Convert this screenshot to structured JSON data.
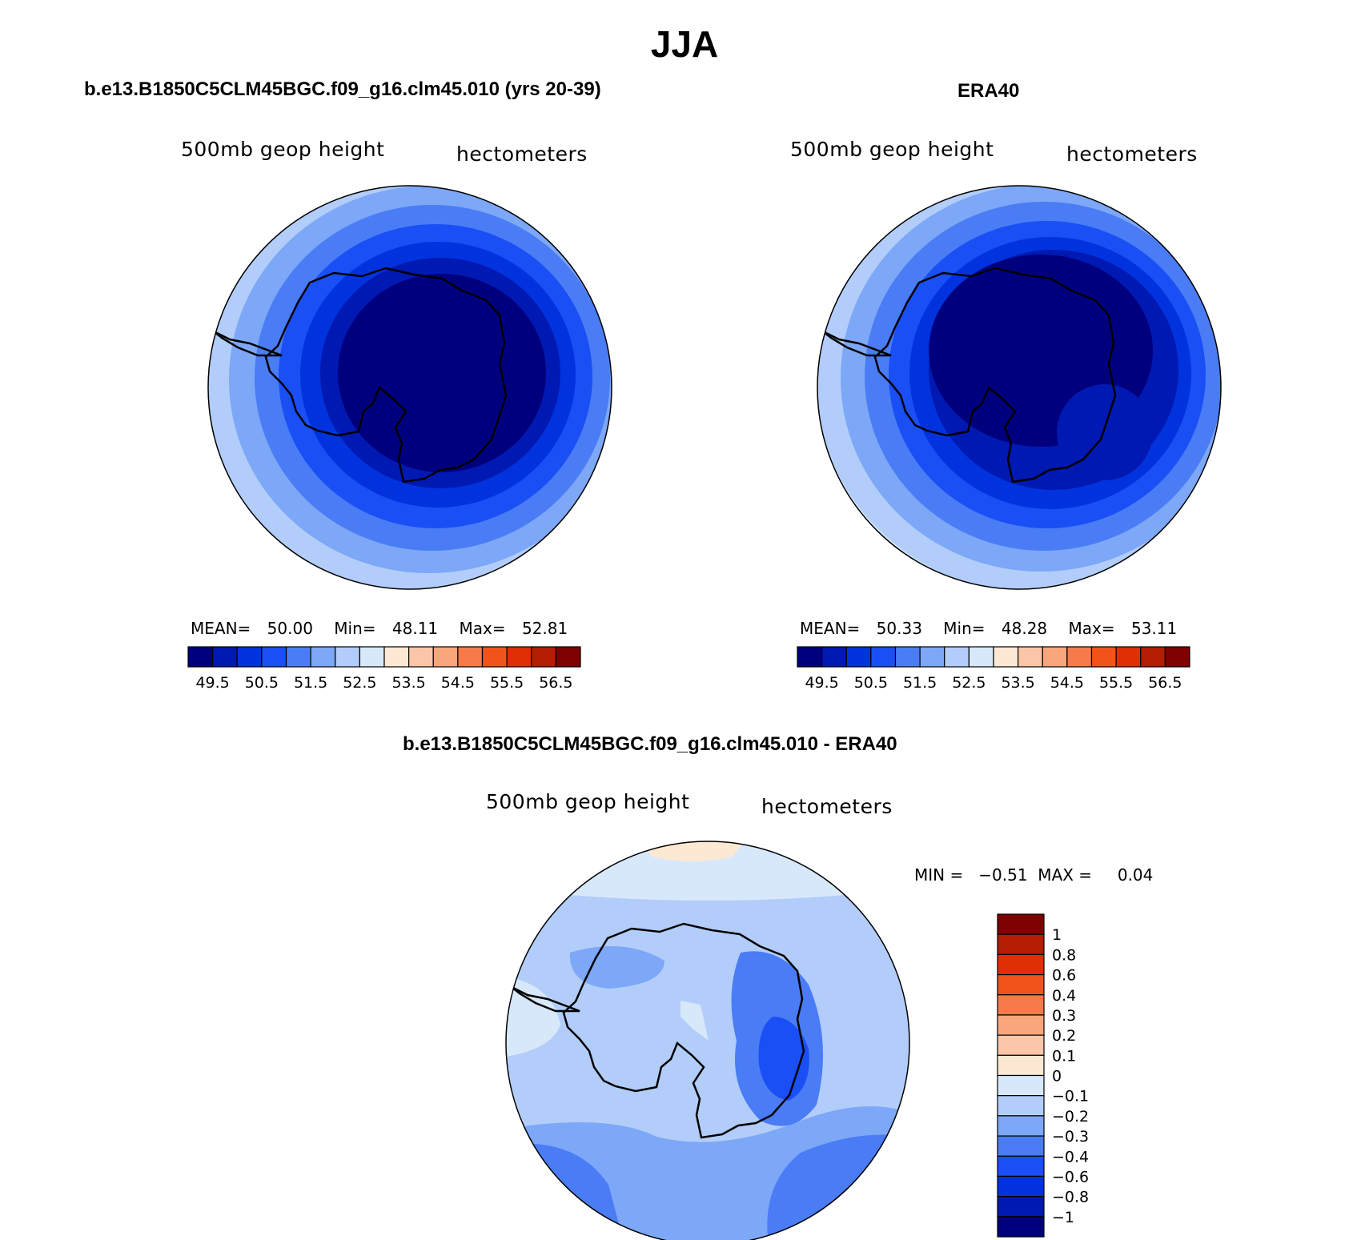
{
  "title": "JJA",
  "panels": [
    {
      "id": "model",
      "title": "b.e13.B1850C5CLM45BGC.f09_g16.clm45.010 (yrs 20-39)",
      "left_label": "500mb  geop  height",
      "right_label": "hectometers",
      "stats": {
        "mean_label": "MEAN=",
        "mean": "50.00",
        "min_label": "Min=",
        "min": "48.11",
        "max_label": "Max=",
        "max": "52.81"
      }
    },
    {
      "id": "obs",
      "title": "ERA40",
      "left_label": "500mb  geop  height",
      "right_label": "hectometers",
      "stats": {
        "mean_label": "MEAN=",
        "mean": "50.33",
        "min_label": "Min=",
        "min": "48.28",
        "max_label": "Max=",
        "max": "53.11"
      }
    },
    {
      "id": "diff",
      "title": "b.e13.B1850C5CLM45BGC.f09_g16.clm45.010 - ERA40",
      "left_label": "500mb  geop  height",
      "right_label": "hectometers",
      "stats": {
        "text": "MIN =   −0.51  MAX =     0.04"
      }
    }
  ],
  "colorbar_main": {
    "colors": [
      "#00007f",
      "#0019b2",
      "#0033dd",
      "#1a4ff5",
      "#4a7cf5",
      "#7da7f7",
      "#b2cdf9",
      "#d8e8fb",
      "#fde8d4",
      "#fbc6a8",
      "#f9a67c",
      "#f77a4b",
      "#f2531b",
      "#e02e05",
      "#b51c04",
      "#7f0000"
    ],
    "tick_labels": [
      "49.5",
      "50.5",
      "51.5",
      "52.5",
      "53.5",
      "54.5",
      "55.5",
      "56.5"
    ]
  },
  "colorbar_diff": {
    "colors": [
      "#7f0000",
      "#b51c04",
      "#e02e05",
      "#f2531b",
      "#f77a4b",
      "#f9a67c",
      "#fbc6a8",
      "#fde8d4",
      "#d8e8fb",
      "#b2cdf9",
      "#7da7f7",
      "#4a7cf5",
      "#1a4ff5",
      "#0033dd",
      "#0019b2",
      "#00007f"
    ],
    "tick_labels": [
      "1",
      "0.8",
      "0.6",
      "0.4",
      "0.3",
      "0.2",
      "0.1",
      "0",
      "−0.1",
      "−0.2",
      "−0.3",
      "−0.4",
      "−0.6",
      "−0.8",
      "−1"
    ]
  },
  "chart_data": [
    {
      "type": "heatmap",
      "title": "b.e13.B1850C5CLM45BGC.f09_g16.clm45.010 (yrs 20-39)",
      "variable": "500mb  geop  height",
      "units": "hectometers",
      "mean": 50.0,
      "min": 48.11,
      "max": 52.81,
      "contour_levels": [
        49.5,
        50,
        50.5,
        51,
        51.5,
        52,
        52.5,
        53,
        53.5,
        54,
        54.5,
        55,
        55.5,
        56,
        56.5
      ]
    },
    {
      "type": "heatmap",
      "title": "ERA40",
      "variable": "500mb  geop  height",
      "units": "hectometers",
      "mean": 50.33,
      "min": 48.28,
      "max": 53.11,
      "contour_levels": [
        49.5,
        50,
        50.5,
        51,
        51.5,
        52,
        52.5,
        53,
        53.5,
        54,
        54.5,
        55,
        55.5,
        56,
        56.5
      ]
    },
    {
      "type": "heatmap",
      "title": "b.e13.B1850C5CLM45BGC.f09_g16.clm45.010 - ERA40",
      "variable": "500mb  geop  height",
      "units": "hectometers",
      "min": -0.51,
      "max": 0.04,
      "contour_levels": [
        -1,
        -0.8,
        -0.6,
        -0.4,
        -0.3,
        -0.2,
        -0.1,
        0,
        0.1,
        0.2,
        0.3,
        0.4,
        0.6,
        0.8,
        1
      ]
    }
  ]
}
